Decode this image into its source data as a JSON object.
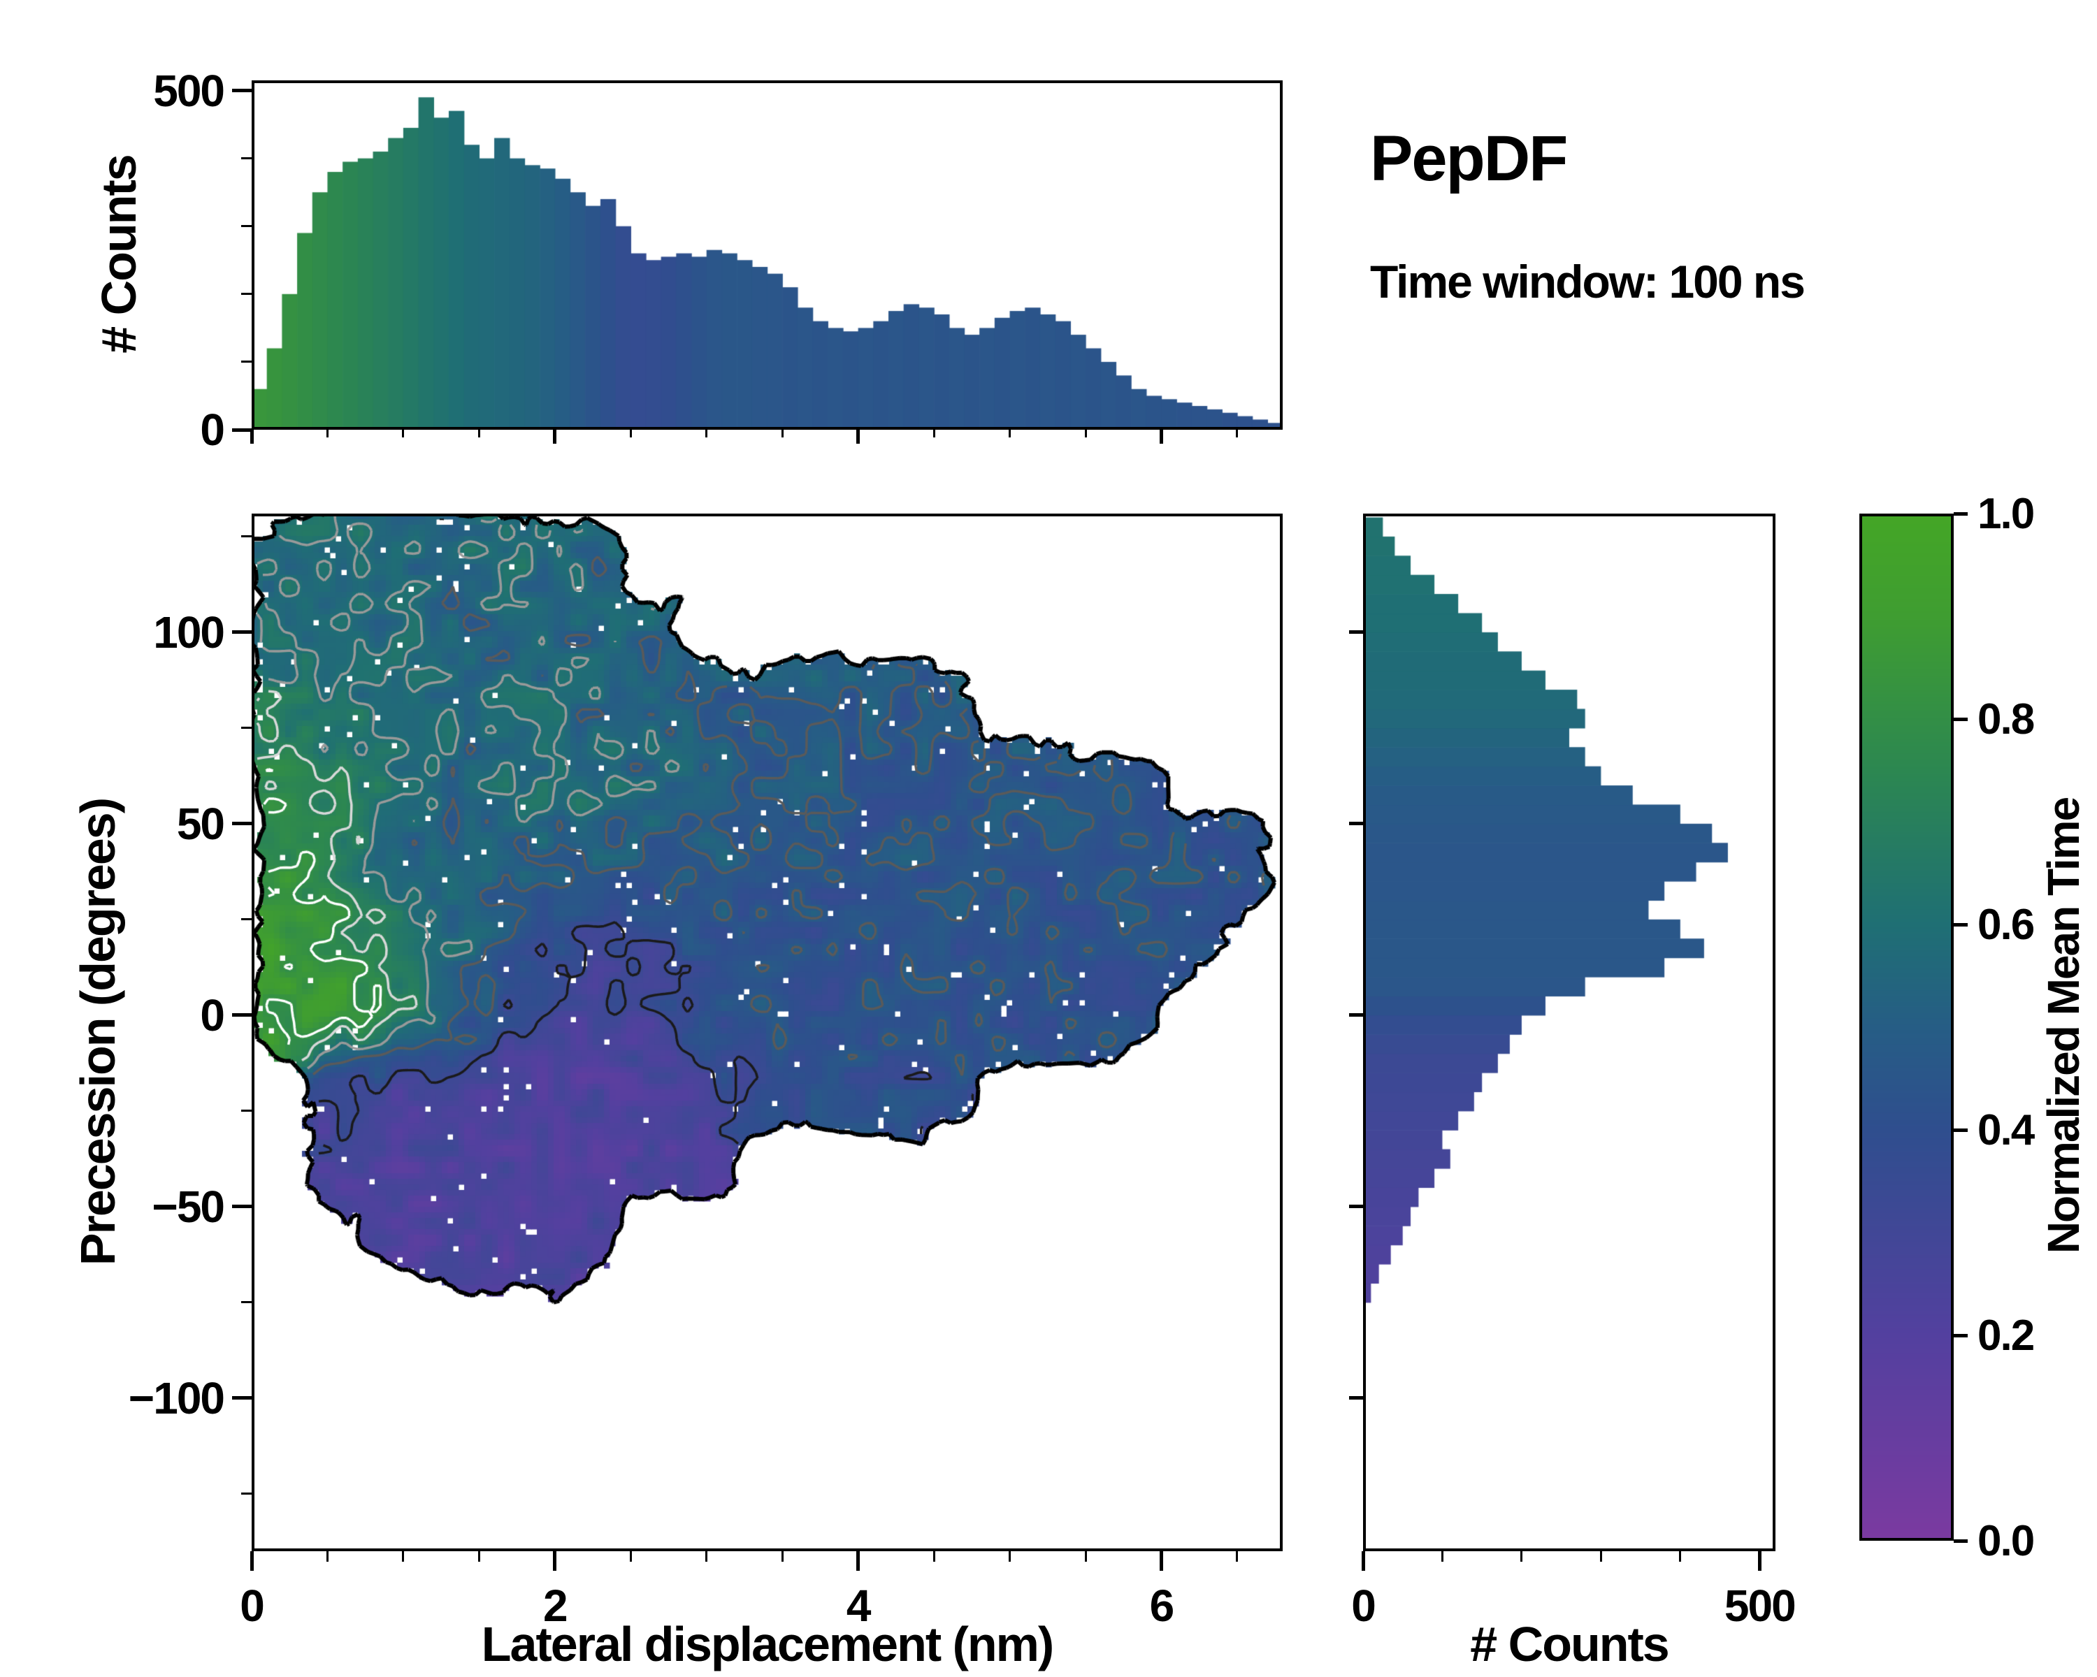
{
  "annotations": {
    "title": "PepDF",
    "subtitle": "Time window: 100 ns"
  },
  "colormap": {
    "label": "Normalized Mean Time",
    "stops": [
      [
        0.0,
        "#7b3aa0"
      ],
      [
        0.2,
        "#53409f"
      ],
      [
        0.4,
        "#2f4e8e"
      ],
      [
        0.5,
        "#265d85"
      ],
      [
        0.6,
        "#1f6f74"
      ],
      [
        0.75,
        "#2c8751"
      ],
      [
        0.9,
        "#3f9d31"
      ],
      [
        1.0,
        "#44a626"
      ]
    ],
    "ticks": [
      {
        "v": 1.0,
        "label": "1.0"
      },
      {
        "v": 0.8,
        "label": "0.8"
      },
      {
        "v": 0.6,
        "label": "0.6"
      },
      {
        "v": 0.4,
        "label": "0.4"
      },
      {
        "v": 0.2,
        "label": "0.2"
      },
      {
        "v": 0.0,
        "label": "0.0"
      }
    ]
  },
  "chart_data": [
    {
      "id": "top_histogram",
      "type": "bar",
      "ylabel": "# Counts",
      "bin_start": 0.0,
      "bin_width": 0.1,
      "xlim": [
        0,
        6.8
      ],
      "ylim": [
        0,
        515
      ],
      "yticks": [
        {
          "v": 0,
          "label": "0"
        },
        {
          "v": 500,
          "label": "500"
        }
      ],
      "minor_y": [
        100,
        200,
        300,
        400
      ],
      "counts": [
        60,
        120,
        200,
        290,
        350,
        380,
        395,
        400,
        410,
        430,
        445,
        490,
        460,
        470,
        420,
        400,
        430,
        400,
        390,
        385,
        370,
        350,
        330,
        340,
        300,
        260,
        250,
        255,
        260,
        255,
        265,
        260,
        250,
        240,
        230,
        210,
        180,
        160,
        150,
        145,
        150,
        160,
        175,
        185,
        180,
        170,
        150,
        140,
        150,
        165,
        175,
        180,
        170,
        160,
        140,
        120,
        100,
        80,
        60,
        50,
        45,
        40,
        35,
        30,
        25,
        20,
        15,
        10
      ],
      "mean_time": [
        0.85,
        0.84,
        0.82,
        0.8,
        0.78,
        0.76,
        0.74,
        0.72,
        0.7,
        0.68,
        0.66,
        0.64,
        0.62,
        0.6,
        0.58,
        0.57,
        0.56,
        0.55,
        0.54,
        0.52,
        0.5,
        0.47,
        0.44,
        0.41,
        0.38,
        0.37,
        0.38,
        0.39,
        0.41,
        0.43,
        0.45,
        0.46,
        0.46,
        0.45,
        0.45,
        0.44,
        0.45,
        0.44,
        0.45,
        0.44,
        0.45,
        0.44,
        0.45,
        0.44,
        0.45,
        0.44,
        0.45,
        0.44,
        0.45,
        0.44,
        0.45,
        0.44,
        0.45,
        0.44,
        0.45,
        0.44,
        0.45,
        0.44,
        0.45,
        0.44,
        0.44,
        0.43,
        0.43,
        0.43,
        0.42,
        0.42,
        0.42,
        0.42
      ]
    },
    {
      "id": "joint_heatmap",
      "type": "heatmap",
      "xlabel": "Lateral displacement (nm)",
      "ylabel": "Precession (degrees)",
      "value_label": "Normalized Mean Time",
      "xlim": [
        0,
        6.8
      ],
      "ylim": [
        -140,
        131
      ],
      "xticks": [
        {
          "v": 0,
          "label": "0"
        },
        {
          "v": 2,
          "label": "2"
        },
        {
          "v": 4,
          "label": "4"
        },
        {
          "v": 6,
          "label": "6"
        }
      ],
      "yticks": [
        {
          "v": 100,
          "label": "100"
        },
        {
          "v": 50,
          "label": "50"
        },
        {
          "v": 0,
          "label": "0"
        },
        {
          "v": -50,
          "label": "−50"
        },
        {
          "v": -100,
          "label": "−100"
        }
      ],
      "minor_x_step": 0.5,
      "minor_y_step": 25,
      "x_centers": [
        0.2,
        0.6,
        1.0,
        1.4,
        1.8,
        2.2,
        2.6,
        3.0,
        3.4,
        3.8,
        4.2,
        4.6,
        5.0,
        5.4,
        5.8,
        6.2,
        6.6
      ],
      "y_centers": [
        120,
        100,
        80,
        60,
        40,
        20,
        0,
        -20,
        -40,
        -60,
        -80,
        -100,
        -120
      ],
      "values": [
        [
          0.58,
          0.6,
          0.55,
          0.58,
          0.6,
          0.55,
          null,
          null,
          null,
          null,
          null,
          null,
          null,
          null,
          null,
          null,
          null
        ],
        [
          0.6,
          0.55,
          0.58,
          0.52,
          0.55,
          0.5,
          0.52,
          null,
          null,
          null,
          null,
          null,
          null,
          null,
          null,
          null,
          null
        ],
        [
          0.68,
          0.62,
          0.6,
          0.55,
          0.58,
          0.55,
          0.52,
          0.5,
          0.48,
          0.5,
          0.46,
          0.48,
          null,
          null,
          null,
          null,
          null
        ],
        [
          0.75,
          0.7,
          0.58,
          0.52,
          0.6,
          0.62,
          0.55,
          0.52,
          0.48,
          0.46,
          0.45,
          0.44,
          0.46,
          0.44,
          0.45,
          null,
          null
        ],
        [
          0.8,
          0.72,
          0.55,
          0.48,
          0.52,
          0.5,
          0.46,
          0.5,
          0.46,
          0.44,
          0.46,
          0.44,
          0.45,
          0.44,
          0.46,
          0.44,
          0.45
        ],
        [
          0.88,
          0.8,
          0.7,
          0.55,
          0.45,
          0.32,
          0.35,
          0.44,
          0.45,
          0.42,
          0.44,
          0.42,
          0.45,
          0.42,
          0.44,
          0.42,
          null
        ],
        [
          0.85,
          0.88,
          0.72,
          0.5,
          0.3,
          0.25,
          0.3,
          0.38,
          0.44,
          0.42,
          0.44,
          0.44,
          0.42,
          0.44,
          0.42,
          null,
          null
        ],
        [
          null,
          0.3,
          0.26,
          0.28,
          0.24,
          0.22,
          0.26,
          0.3,
          0.4,
          0.42,
          0.4,
          0.38,
          null,
          null,
          null,
          null,
          null
        ],
        [
          null,
          0.26,
          0.22,
          0.25,
          0.22,
          0.24,
          0.22,
          0.24,
          null,
          null,
          null,
          null,
          null,
          null,
          null,
          null,
          null
        ],
        [
          null,
          null,
          0.22,
          0.24,
          0.22,
          0.23,
          null,
          null,
          null,
          null,
          null,
          null,
          null,
          null,
          null,
          null,
          null
        ],
        [
          null,
          null,
          null,
          null,
          null,
          null,
          null,
          null,
          null,
          null,
          null,
          null,
          null,
          null,
          null,
          null,
          null
        ],
        [
          null,
          null,
          null,
          null,
          null,
          null,
          null,
          null,
          null,
          null,
          null,
          null,
          null,
          null,
          null,
          null,
          null
        ],
        [
          null,
          null,
          null,
          null,
          null,
          null,
          null,
          null,
          null,
          null,
          null,
          null,
          null,
          null,
          null,
          null,
          null
        ]
      ]
    },
    {
      "id": "right_histogram",
      "type": "bar",
      "orientation": "horizontal",
      "xlabel": "# Counts",
      "bin_start": -130,
      "bin_width": 5,
      "xlim": [
        0,
        520
      ],
      "ylim": [
        -140,
        131
      ],
      "xticks": [
        {
          "v": 0,
          "label": "0"
        },
        {
          "v": 500,
          "label": "500"
        }
      ],
      "minor_x": [
        100,
        200,
        300,
        400
      ],
      "counts": [
        0,
        0,
        0,
        0,
        0,
        0,
        0,
        0,
        0,
        0,
        0,
        10,
        20,
        35,
        50,
        60,
        70,
        90,
        110,
        100,
        120,
        140,
        150,
        170,
        185,
        200,
        230,
        280,
        380,
        430,
        400,
        360,
        380,
        420,
        460,
        440,
        400,
        340,
        300,
        280,
        260,
        280,
        270,
        230,
        200,
        170,
        150,
        120,
        90,
        60,
        40,
        25
      ],
      "mean_time": [
        0.2,
        0.2,
        0.2,
        0.2,
        0.2,
        0.2,
        0.2,
        0.2,
        0.2,
        0.2,
        0.2,
        0.22,
        0.22,
        0.23,
        0.24,
        0.25,
        0.26,
        0.27,
        0.28,
        0.29,
        0.3,
        0.31,
        0.32,
        0.33,
        0.35,
        0.38,
        0.42,
        0.45,
        0.46,
        0.46,
        0.46,
        0.46,
        0.45,
        0.45,
        0.45,
        0.46,
        0.47,
        0.48,
        0.5,
        0.52,
        0.54,
        0.56,
        0.57,
        0.58,
        0.58,
        0.59,
        0.6,
        0.6,
        0.61,
        0.61,
        0.62,
        0.62
      ]
    }
  ]
}
